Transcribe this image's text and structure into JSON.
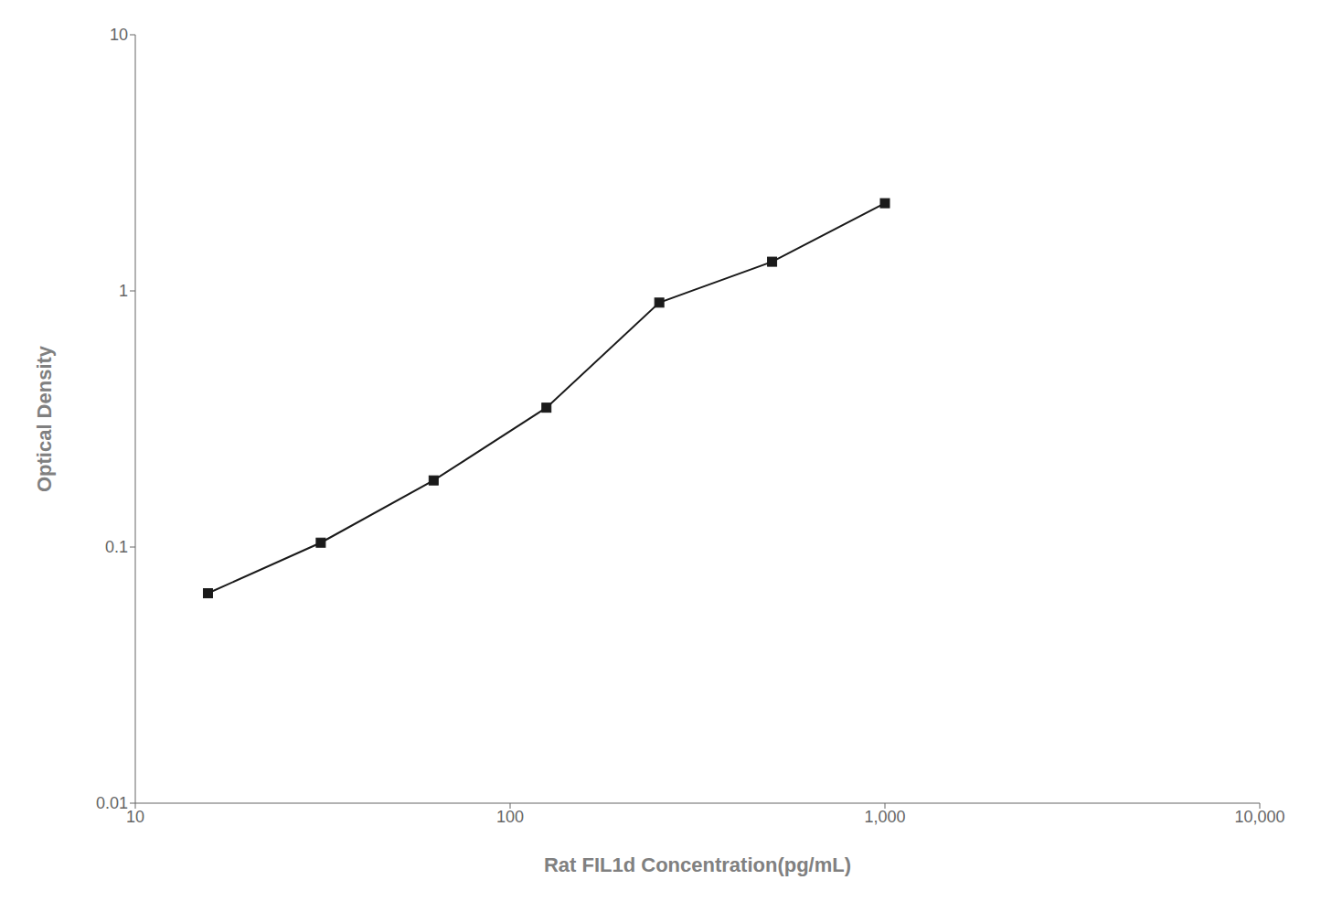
{
  "chart_data": {
    "type": "line",
    "x": [
      15.625,
      31.25,
      62.5,
      125,
      250,
      500,
      1000
    ],
    "values": [
      0.066,
      0.104,
      0.182,
      0.35,
      0.9,
      1.3,
      2.2
    ],
    "xlabel": "Rat FIL1d Concentration(pg/mL)",
    "ylabel": "Optical Density",
    "log": true,
    "xlim": [
      10,
      10000
    ],
    "ylim": [
      0.01,
      10
    ],
    "xticks": [
      10,
      100,
      {
        "value": 1000,
        "label": "1,000"
      },
      {
        "value": 10000,
        "label": "10,000"
      }
    ],
    "yticks": [
      0.01,
      0.1,
      1,
      10
    ],
    "color": "#1a1a1a",
    "marker": "square",
    "grid": false
  }
}
